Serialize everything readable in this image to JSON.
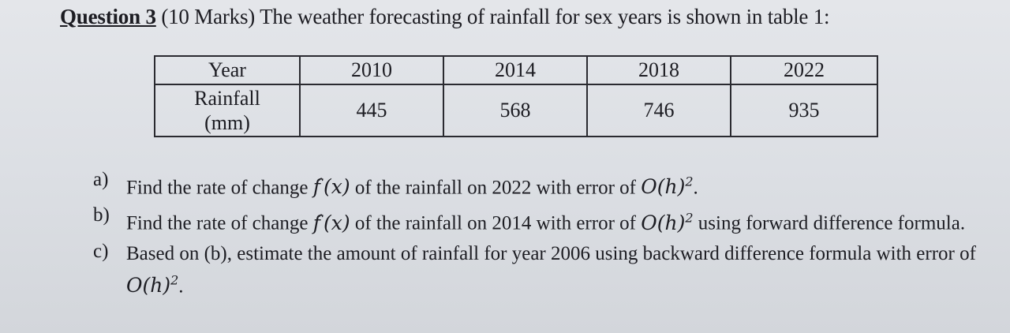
{
  "heading": {
    "label": "Question 3",
    "text": " (10 Marks) The weather forecasting of rainfall for sex years is shown in table 1:"
  },
  "table": {
    "headers": [
      "Year",
      "2010",
      "2014",
      "2018",
      "2022"
    ],
    "row_label_line1": "Rainfall",
    "row_label_line2": "(mm)",
    "values": [
      "445",
      "568",
      "746",
      "935"
    ]
  },
  "parts": [
    {
      "letter": "a)",
      "pre": "Find the rate of change ",
      "mid": " of the rainfall on 2022 with error of ",
      "post": "."
    },
    {
      "letter": "b)",
      "pre": "Find the rate of change ",
      "mid": " of the rainfall on 2014 with error of ",
      "post": " using forward difference formula."
    },
    {
      "letter": "c)",
      "pre": "Based on (b), estimate the amount of rainfall for year 2006 using backward difference formula with error of ",
      "post": "."
    }
  ],
  "math": {
    "f": "f",
    "prime": "´",
    "arg": "(x)",
    "big_o": "O(h)",
    "exp": "2"
  }
}
